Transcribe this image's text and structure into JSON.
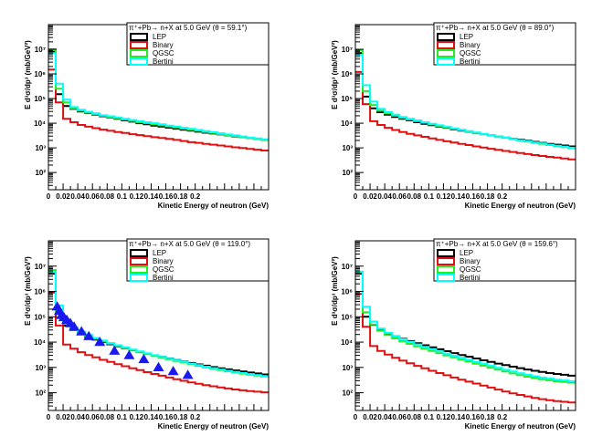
{
  "colors": {
    "LEP": "#000000",
    "Binary": "#e01010",
    "QGSC": "#22ee22",
    "Bertini": "#00ffff",
    "data": "#1a1aee"
  },
  "chart_data": [
    {
      "type": "line",
      "title": "π⁺+Pb→ n+X at 5.0 GeV (θ =  59.1°)",
      "xlabel": "Kinetic Energy of neutron (GeV)",
      "ylabel": "E d³σ/dp³ (mb/GeV²)",
      "xlim": [
        0,
        0.3
      ],
      "ylim": [
        20,
        100000000.0
      ],
      "yscale": "log",
      "grid": false,
      "legend_position": "top-right",
      "x_ticks": [
        "0",
        "0.02",
        "0.04",
        "0.06",
        "0.08",
        "0.1",
        "0.12",
        "0.14",
        "0.16",
        "0.18",
        "0.2"
      ],
      "y_ticks": [
        "10²",
        "10³",
        "10⁴",
        "10⁵",
        "10⁶",
        "10⁷"
      ],
      "bin_edges": [
        0,
        0.01,
        0.02,
        0.03,
        0.04,
        0.05,
        0.06,
        0.07,
        0.08,
        0.09,
        0.1,
        0.11,
        0.12,
        0.13,
        0.14,
        0.15,
        0.16,
        0.17,
        0.18,
        0.19,
        0.2,
        0.21,
        0.22,
        0.23,
        0.24,
        0.25,
        0.26,
        0.27,
        0.28,
        0.29,
        0.3
      ],
      "series": [
        {
          "name": "LEP",
          "values": [
            8000000,
            150000,
            50000,
            38000,
            30000,
            26000,
            22000,
            19000,
            17000,
            15000,
            13000,
            11500,
            10000,
            9000,
            8000,
            7300,
            6600,
            6000,
            5400,
            5000,
            4500,
            4100,
            3800,
            3500,
            3200,
            2900,
            2700,
            2500,
            2300,
            2100
          ]
        },
        {
          "name": "Binary",
          "values": [
            1500000,
            70000,
            15000,
            11000,
            8500,
            7200,
            6300,
            5500,
            4900,
            4400,
            4000,
            3600,
            3300,
            3000,
            2700,
            2500,
            2300,
            2100,
            1900,
            1700,
            1600,
            1450,
            1350,
            1250,
            1150,
            1050,
            980,
            900,
            840,
            780
          ]
        },
        {
          "name": "QGSC",
          "values": [
            10000000,
            250000,
            70000,
            40000,
            32000,
            27000,
            23000,
            20000,
            18000,
            16000,
            14000,
            12500,
            11000,
            10000,
            9000,
            8200,
            7400,
            6700,
            6000,
            5400,
            4900,
            4400,
            4000,
            3600,
            3300,
            3000,
            2700,
            2500,
            2300,
            2100
          ]
        },
        {
          "name": "Bertini",
          "values": [
            7000000,
            400000,
            90000,
            45000,
            35000,
            29000,
            25000,
            21000,
            19000,
            17000,
            15000,
            13500,
            12000,
            11000,
            10000,
            9000,
            8000,
            7200,
            6500,
            5900,
            5300,
            4800,
            4300,
            3900,
            3500,
            3200,
            2900,
            2600,
            2400,
            2200
          ]
        }
      ],
      "points": []
    },
    {
      "type": "line",
      "title": "π⁺+Pb→ n+X at 5.0 GeV (θ =  89.0°)",
      "xlabel": "Kinetic Energy of neutron (GeV)",
      "ylabel": "E d³σ/dp³ (mb/GeV²)",
      "xlim": [
        0,
        0.3
      ],
      "ylim": [
        20,
        100000000.0
      ],
      "yscale": "log",
      "grid": false,
      "legend_position": "top-right",
      "x_ticks": [
        "0",
        "0.02",
        "0.04",
        "0.06",
        "0.08",
        "0.1",
        "0.12",
        "0.14",
        "0.16",
        "0.18",
        "0.2"
      ],
      "y_ticks": [
        "10²",
        "10³",
        "10⁴",
        "10⁵",
        "10⁶",
        "10⁷"
      ],
      "bin_edges": [
        0,
        0.01,
        0.02,
        0.03,
        0.04,
        0.05,
        0.06,
        0.07,
        0.08,
        0.09,
        0.1,
        0.11,
        0.12,
        0.13,
        0.14,
        0.15,
        0.16,
        0.17,
        0.18,
        0.19,
        0.2,
        0.21,
        0.22,
        0.23,
        0.24,
        0.25,
        0.26,
        0.27,
        0.28,
        0.29,
        0.3
      ],
      "series": [
        {
          "name": "LEP",
          "values": [
            7000000,
            120000,
            40000,
            28000,
            22000,
            18000,
            15000,
            13000,
            11000,
            9500,
            8300,
            7300,
            6500,
            5700,
            5000,
            4500,
            4000,
            3600,
            3200,
            2900,
            2600,
            2350,
            2150,
            1950,
            1750,
            1600,
            1450,
            1350,
            1250,
            1150
          ]
        },
        {
          "name": "Binary",
          "values": [
            1200000,
            60000,
            12000,
            8500,
            6500,
            5300,
            4400,
            3700,
            3200,
            2800,
            2400,
            2100,
            1850,
            1650,
            1450,
            1300,
            1150,
            1030,
            920,
            830,
            750,
            680,
            620,
            560,
            510,
            470,
            430,
            400,
            370,
            340
          ]
        },
        {
          "name": "QGSC",
          "values": [
            9000000,
            200000,
            55000,
            32000,
            25000,
            20000,
            16500,
            14000,
            12000,
            10500,
            9000,
            7800,
            6800,
            6000,
            5200,
            4600,
            4100,
            3600,
            3200,
            2850,
            2550,
            2250,
            2000,
            1800,
            1600,
            1450,
            1300,
            1180,
            1070,
            970
          ]
        },
        {
          "name": "Bertini",
          "values": [
            6000000,
            350000,
            75000,
            38000,
            28000,
            22000,
            18000,
            15000,
            13000,
            11000,
            9500,
            8200,
            7100,
            6200,
            5400,
            4800,
            4200,
            3700,
            3300,
            2900,
            2600,
            2300,
            2050,
            1850,
            1650,
            1500,
            1350,
            1230,
            1120,
            1020
          ]
        }
      ],
      "points": []
    },
    {
      "type": "line",
      "title": "π⁺+Pb→ n+X at 5.0 GeV (θ = 119.0°)",
      "xlabel": "Kinetic Energy of neutron (GeV)",
      "ylabel": "E d³σ/dp³ (mb/GeV²)",
      "xlim": [
        0,
        0.3
      ],
      "ylim": [
        20,
        100000000.0
      ],
      "yscale": "log",
      "grid": false,
      "legend_position": "top-right",
      "x_ticks": [
        "0",
        "0.02",
        "0.04",
        "0.06",
        "0.08",
        "0.1",
        "0.12",
        "0.14",
        "0.16",
        "0.18",
        "0.2"
      ],
      "y_ticks": [
        "10²",
        "10³",
        "10⁴",
        "10⁵",
        "10⁶",
        "10⁷"
      ],
      "bin_edges": [
        0,
        0.01,
        0.02,
        0.03,
        0.04,
        0.05,
        0.06,
        0.07,
        0.08,
        0.09,
        0.1,
        0.11,
        0.12,
        0.13,
        0.14,
        0.15,
        0.16,
        0.17,
        0.18,
        0.19,
        0.2,
        0.21,
        0.22,
        0.23,
        0.24,
        0.25,
        0.26,
        0.27,
        0.28,
        0.29,
        0.3
      ],
      "series": [
        {
          "name": "LEP",
          "values": [
            5000000,
            90000,
            45000,
            30000,
            21000,
            16000,
            12500,
            10000,
            8200,
            6800,
            5700,
            4800,
            4100,
            3500,
            3000,
            2600,
            2250,
            1950,
            1700,
            1500,
            1320,
            1170,
            1040,
            930,
            840,
            760,
            690,
            630,
            580,
            530
          ]
        },
        {
          "name": "Binary",
          "values": [
            900000,
            45000,
            8000,
            5500,
            4000,
            3100,
            2500,
            2000,
            1650,
            1350,
            1120,
            930,
            780,
            650,
            550,
            470,
            400,
            340,
            295,
            255,
            225,
            200,
            180,
            162,
            147,
            135,
            125,
            117,
            110,
            104
          ]
        },
        {
          "name": "QGSC",
          "values": [
            7000000,
            160000,
            55000,
            33000,
            23000,
            17500,
            13500,
            10700,
            8700,
            7100,
            5900,
            4900,
            4100,
            3450,
            2900,
            2450,
            2100,
            1800,
            1550,
            1330,
            1150,
            1000,
            880,
            780,
            700,
            630,
            570,
            520,
            480,
            440
          ]
        },
        {
          "name": "Bertini",
          "values": [
            6000000,
            280000,
            70000,
            38000,
            26000,
            19000,
            14500,
            11500,
            9200,
            7500,
            6200,
            5100,
            4300,
            3600,
            3050,
            2600,
            2220,
            1900,
            1650,
            1420,
            1230,
            1070,
            940,
            830,
            740,
            660,
            600,
            545,
            500,
            460
          ]
        }
      ],
      "points": [
        {
          "x": 0.012,
          "y": 250000
        },
        {
          "x": 0.015,
          "y": 170000
        },
        {
          "x": 0.018,
          "y": 120000
        },
        {
          "x": 0.021,
          "y": 95000
        },
        {
          "x": 0.025,
          "y": 75000
        },
        {
          "x": 0.03,
          "y": 55000
        },
        {
          "x": 0.035,
          "y": 40000
        },
        {
          "x": 0.045,
          "y": 26000
        },
        {
          "x": 0.055,
          "y": 17000
        },
        {
          "x": 0.07,
          "y": 10000
        },
        {
          "x": 0.09,
          "y": 4500
        },
        {
          "x": 0.11,
          "y": 3000
        },
        {
          "x": 0.13,
          "y": 2100
        },
        {
          "x": 0.15,
          "y": 1000
        },
        {
          "x": 0.17,
          "y": 700
        },
        {
          "x": 0.19,
          "y": 500
        }
      ]
    },
    {
      "type": "line",
      "title": "π⁺+Pb→ n+X at 5.0 GeV (θ = 159.6°)",
      "xlabel": "Kinetic Energy of neutron (GeV)",
      "ylabel": "E d³σ/dp³ (mb/GeV²)",
      "xlim": [
        0,
        0.3
      ],
      "ylim": [
        20,
        100000000.0
      ],
      "yscale": "log",
      "grid": false,
      "legend_position": "top-right",
      "x_ticks": [
        "0",
        "0.02",
        "0.04",
        "0.06",
        "0.08",
        "0.1",
        "0.12",
        "0.14",
        "0.16",
        "0.18",
        "0.2"
      ],
      "y_ticks": [
        "10²",
        "10³",
        "10⁴",
        "10⁵",
        "10⁶",
        "10⁷"
      ],
      "bin_edges": [
        0,
        0.01,
        0.02,
        0.03,
        0.04,
        0.05,
        0.06,
        0.07,
        0.08,
        0.09,
        0.1,
        0.11,
        0.12,
        0.13,
        0.14,
        0.15,
        0.16,
        0.17,
        0.18,
        0.19,
        0.2,
        0.21,
        0.22,
        0.23,
        0.24,
        0.25,
        0.26,
        0.27,
        0.28,
        0.29,
        0.3
      ],
      "series": [
        {
          "name": "LEP",
          "values": [
            5000000,
            100000,
            48000,
            30000,
            22000,
            17000,
            13500,
            11000,
            9000,
            7500,
            6200,
            5200,
            4400,
            3700,
            3100,
            2650,
            2250,
            1920,
            1650,
            1420,
            1230,
            1070,
            940,
            830,
            740,
            660,
            600,
            550,
            510,
            470
          ]
        },
        {
          "name": "Binary",
          "values": [
            800000,
            40000,
            7000,
            4500,
            3200,
            2400,
            1850,
            1450,
            1150,
            920,
            740,
            600,
            490,
            400,
            330,
            275,
            230,
            192,
            160,
            134,
            112,
            95,
            82,
            72,
            63,
            56,
            51,
            47,
            44,
            41
          ]
        },
        {
          "name": "QGSC",
          "values": [
            6000000,
            150000,
            50000,
            28000,
            19000,
            14000,
            10800,
            8500,
            6800,
            5500,
            4500,
            3700,
            3000,
            2500,
            2050,
            1700,
            1400,
            1170,
            980,
            820,
            690,
            580,
            500,
            430,
            380,
            340,
            310,
            285,
            265,
            250
          ]
        },
        {
          "name": "Bertini",
          "values": [
            6000000,
            250000,
            65000,
            34000,
            23000,
            17000,
            13000,
            10200,
            8100,
            6500,
            5300,
            4300,
            3500,
            2900,
            2400,
            2000,
            1650,
            1380,
            1150,
            960,
            810,
            690,
            590,
            510,
            450,
            400,
            360,
            330,
            305,
            285
          ]
        }
      ],
      "points": []
    }
  ]
}
